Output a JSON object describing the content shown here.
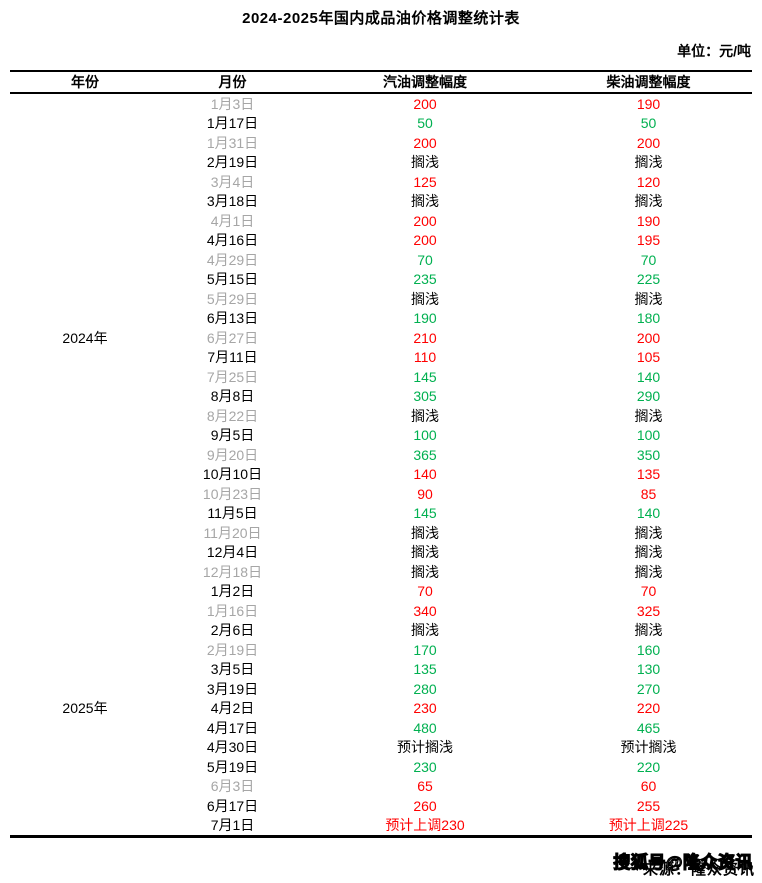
{
  "title": "2024-2025年国内成品油价格调整统计表",
  "unit_label": "单位：元/吨",
  "watermark": "搜狐号@隆众资讯",
  "source_label": "来源：隆众资讯",
  "colors": {
    "red": "#FF0000",
    "green": "#00B050",
    "black": "#000000",
    "muted_date": "#A6A6A6"
  },
  "table": {
    "columns": [
      "年份",
      "月份",
      "汽油调整幅度",
      "柴油调整幅度"
    ],
    "groups": [
      {
        "year": "2024年",
        "rows": [
          {
            "date": "1月3日",
            "muted": true,
            "gas": "200",
            "gas_color": "red",
            "diesel": "190",
            "diesel_color": "red"
          },
          {
            "date": "1月17日",
            "muted": false,
            "gas": "50",
            "gas_color": "green",
            "diesel": "50",
            "diesel_color": "green"
          },
          {
            "date": "1月31日",
            "muted": true,
            "gas": "200",
            "gas_color": "red",
            "diesel": "200",
            "diesel_color": "red"
          },
          {
            "date": "2月19日",
            "muted": false,
            "gas": "搁浅",
            "gas_color": "black",
            "diesel": "搁浅",
            "diesel_color": "black"
          },
          {
            "date": "3月4日",
            "muted": true,
            "gas": "125",
            "gas_color": "red",
            "diesel": "120",
            "diesel_color": "red"
          },
          {
            "date": "3月18日",
            "muted": false,
            "gas": "搁浅",
            "gas_color": "black",
            "diesel": "搁浅",
            "diesel_color": "black"
          },
          {
            "date": "4月1日",
            "muted": true,
            "gas": "200",
            "gas_color": "red",
            "diesel": "190",
            "diesel_color": "red"
          },
          {
            "date": "4月16日",
            "muted": false,
            "gas": "200",
            "gas_color": "red",
            "diesel": "195",
            "diesel_color": "red"
          },
          {
            "date": "4月29日",
            "muted": true,
            "gas": "70",
            "gas_color": "green",
            "diesel": "70",
            "diesel_color": "green"
          },
          {
            "date": "5月15日",
            "muted": false,
            "gas": "235",
            "gas_color": "green",
            "diesel": "225",
            "diesel_color": "green"
          },
          {
            "date": "5月29日",
            "muted": true,
            "gas": "搁浅",
            "gas_color": "black",
            "diesel": "搁浅",
            "diesel_color": "black"
          },
          {
            "date": "6月13日",
            "muted": false,
            "gas": "190",
            "gas_color": "green",
            "diesel": "180",
            "diesel_color": "green"
          },
          {
            "date": "6月27日",
            "muted": true,
            "gas": "210",
            "gas_color": "red",
            "diesel": "200",
            "diesel_color": "red"
          },
          {
            "date": "7月11日",
            "muted": false,
            "gas": "110",
            "gas_color": "red",
            "diesel": "105",
            "diesel_color": "red"
          },
          {
            "date": "7月25日",
            "muted": true,
            "gas": "145",
            "gas_color": "green",
            "diesel": "140",
            "diesel_color": "green"
          },
          {
            "date": "8月8日",
            "muted": false,
            "gas": "305",
            "gas_color": "green",
            "diesel": "290",
            "diesel_color": "green"
          },
          {
            "date": "8月22日",
            "muted": true,
            "gas": "搁浅",
            "gas_color": "black",
            "diesel": "搁浅",
            "diesel_color": "black"
          },
          {
            "date": "9月5日",
            "muted": false,
            "gas": "100",
            "gas_color": "green",
            "diesel": "100",
            "diesel_color": "green"
          },
          {
            "date": "9月20日",
            "muted": true,
            "gas": "365",
            "gas_color": "green",
            "diesel": "350",
            "diesel_color": "green"
          },
          {
            "date": "10月10日",
            "muted": false,
            "gas": "140",
            "gas_color": "red",
            "diesel": "135",
            "diesel_color": "red"
          },
          {
            "date": "10月23日",
            "muted": true,
            "gas": "90",
            "gas_color": "red",
            "diesel": "85",
            "diesel_color": "red"
          },
          {
            "date": "11月5日",
            "muted": false,
            "gas": "145",
            "gas_color": "green",
            "diesel": "140",
            "diesel_color": "green"
          },
          {
            "date": "11月20日",
            "muted": true,
            "gas": "搁浅",
            "gas_color": "black",
            "diesel": "搁浅",
            "diesel_color": "black"
          },
          {
            "date": "12月4日",
            "muted": false,
            "gas": "搁浅",
            "gas_color": "black",
            "diesel": "搁浅",
            "diesel_color": "black"
          },
          {
            "date": "12月18日",
            "muted": true,
            "gas": "搁浅",
            "gas_color": "black",
            "diesel": "搁浅",
            "diesel_color": "black"
          }
        ]
      },
      {
        "year": "2025年",
        "rows": [
          {
            "date": "1月2日",
            "muted": false,
            "gas": "70",
            "gas_color": "red",
            "diesel": "70",
            "diesel_color": "red"
          },
          {
            "date": "1月16日",
            "muted": true,
            "gas": "340",
            "gas_color": "red",
            "diesel": "325",
            "diesel_color": "red"
          },
          {
            "date": "2月6日",
            "muted": false,
            "gas": "搁浅",
            "gas_color": "black",
            "diesel": "搁浅",
            "diesel_color": "black"
          },
          {
            "date": "2月19日",
            "muted": true,
            "gas": "170",
            "gas_color": "green",
            "diesel": "160",
            "diesel_color": "green"
          },
          {
            "date": "3月5日",
            "muted": false,
            "gas": "135",
            "gas_color": "green",
            "diesel": "130",
            "diesel_color": "green"
          },
          {
            "date": "3月19日",
            "muted": false,
            "gas": "280",
            "gas_color": "green",
            "diesel": "270",
            "diesel_color": "green"
          },
          {
            "date": "4月2日",
            "muted": false,
            "gas": "230",
            "gas_color": "red",
            "diesel": "220",
            "diesel_color": "red"
          },
          {
            "date": "4月17日",
            "muted": false,
            "gas": "480",
            "gas_color": "green",
            "diesel": "465",
            "diesel_color": "green"
          },
          {
            "date": "4月30日",
            "muted": false,
            "gas": "预计搁浅",
            "gas_color": "black",
            "diesel": "预计搁浅",
            "diesel_color": "black"
          },
          {
            "date": "5月19日",
            "muted": false,
            "gas": "230",
            "gas_color": "green",
            "diesel": "220",
            "diesel_color": "green"
          },
          {
            "date": "6月3日",
            "muted": true,
            "gas": "65",
            "gas_color": "red",
            "diesel": "60",
            "diesel_color": "red"
          },
          {
            "date": "6月17日",
            "muted": false,
            "gas": "260",
            "gas_color": "red",
            "diesel": "255",
            "diesel_color": "red"
          },
          {
            "date": "7月1日",
            "muted": false,
            "gas": "预计上调230",
            "gas_color": "red",
            "diesel": "预计上调225",
            "diesel_color": "red"
          }
        ]
      }
    ]
  }
}
